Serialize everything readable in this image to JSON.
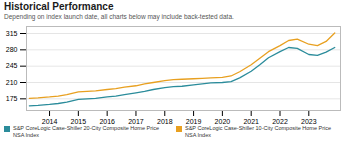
{
  "chart_data": {
    "type": "line",
    "title": "Historical Performance",
    "subtitle": "Depending on index launch date, all charts below may include back-tested data.",
    "x": [
      2013.3,
      2013.6,
      2014.0,
      2014.3,
      2014.6,
      2015.0,
      2015.3,
      2015.6,
      2016.0,
      2016.3,
      2016.6,
      2017.0,
      2017.3,
      2017.6,
      2018.0,
      2018.3,
      2018.6,
      2019.0,
      2019.3,
      2019.6,
      2020.0,
      2020.3,
      2020.6,
      2021.0,
      2021.3,
      2021.6,
      2022.0,
      2022.3,
      2022.6,
      2023.0,
      2023.3,
      2023.6,
      2023.9
    ],
    "series": [
      {
        "name": "S&P CoreLogic Case-Shiller 20-City Composite Home Price\nNSA Index",
        "color": "#2b8c9b",
        "values": [
          160,
          161,
          163,
          165,
          168,
          174,
          175,
          176,
          179,
          181,
          184,
          188,
          191,
          195,
          199,
          201,
          202,
          205,
          207,
          209,
          210,
          212,
          220,
          234,
          248,
          263,
          276,
          285,
          283,
          270,
          268,
          275,
          285
        ]
      },
      {
        "name": "S&P CoreLogic Case-Shiller 10-City Composite Home Price\nNSA Index",
        "color": "#e8a020",
        "values": [
          176,
          177,
          179,
          181,
          184,
          190,
          191,
          192,
          195,
          197,
          200,
          203,
          207,
          210,
          214,
          216,
          217,
          218,
          219,
          220,
          221,
          224,
          233,
          248,
          262,
          276,
          289,
          300,
          303,
          292,
          289,
          298,
          316
        ]
      }
    ],
    "xlim": [
      2013.2,
      2024.1
    ],
    "xticks": [
      2014,
      2015,
      2016,
      2017,
      2018,
      2019,
      2020,
      2021,
      2022,
      2023
    ],
    "ylim": [
      150,
      330
    ],
    "yticks": [
      175,
      210,
      245,
      280,
      315
    ],
    "grid": true,
    "legend": "bottom"
  }
}
